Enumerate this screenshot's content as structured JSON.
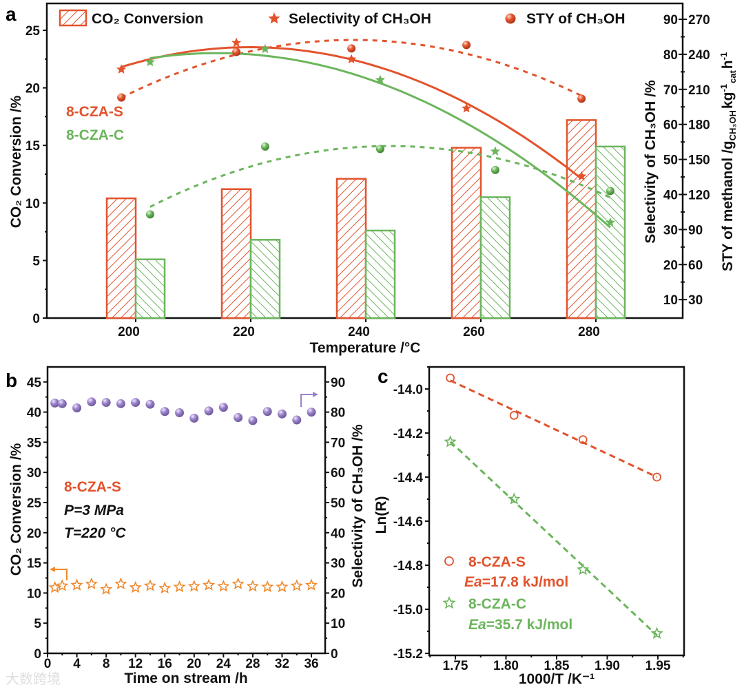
{
  "figure": {
    "watermark": "大数跨境",
    "panel_labels": [
      "a",
      "b",
      "c"
    ]
  },
  "colors": {
    "red": "#e2532c",
    "green": "#6bb55c",
    "purple": "#9a82c9",
    "orange": "#f0892c",
    "axis": "#111111"
  },
  "chart_data": [
    {
      "panel": "a",
      "type": "bar+line",
      "legend": [
        "CO₂ Conversion",
        "Selectivity of CH₃OH",
        "STY of CH₃OH"
      ],
      "legend_placement": "top",
      "xlabel": "Temperature /°C",
      "ylabel": "CO₂ Conversion /%",
      "y2label": "Selectivity of CH₃OH /%",
      "y3label": {
        "main": "STY of methanol /g",
        "sub1": "CH₃OH",
        "kg": "kg",
        "sup1": "-1",
        "sub2": "cat",
        "h": "h",
        "sup2": "-1"
      },
      "samples": [
        "8-CZA-S",
        "8-CZA-C"
      ],
      "categories": [
        200,
        220,
        240,
        260,
        280
      ],
      "x_ticks": [
        "200",
        "220",
        "240",
        "260",
        "280"
      ],
      "y_ticks": [
        "0",
        "5",
        "10",
        "15",
        "20",
        "25"
      ],
      "y2_ticks": [
        "10",
        "20",
        "30",
        "40",
        "50",
        "60",
        "70",
        "80",
        "90"
      ],
      "y3_ticks": [
        "30",
        "60",
        "90",
        "120",
        "150",
        "180",
        "210",
        "240",
        "270"
      ],
      "xlim": [
        184.5,
        295.1
      ],
      "ylim": [
        0,
        27.3
      ],
      "y2lim": [
        4.7,
        94.5
      ],
      "y3lim": [
        14.1,
        283.5
      ],
      "bars": [
        {
          "name": "8-CZA-S",
          "values": [
            10.4,
            11.2,
            12.1,
            14.8,
            17.2
          ]
        },
        {
          "name": "8-CZA-C",
          "values": [
            5.1,
            6.8,
            7.6,
            10.5,
            14.9
          ]
        }
      ],
      "selectivity": [
        {
          "name": "8-CZA-S",
          "x": [
            197.5,
            217.5,
            237.5,
            257.5,
            277.5
          ],
          "values": [
            75.7,
            83.3,
            78.6,
            64.6,
            45.2
          ]
        },
        {
          "name": "8-CZA-C",
          "x": [
            202.5,
            222.5,
            242.5,
            262.5,
            282.5
          ],
          "values": [
            77.8,
            81.5,
            72.7,
            52.3,
            32.0
          ]
        }
      ],
      "sty": [
        {
          "name": "8-CZA-S",
          "x": [
            197.5,
            217.5,
            237.5,
            257.5,
            277.5
          ],
          "values": [
            203,
            242,
            245,
            248,
            202
          ]
        },
        {
          "name": "8-CZA-C",
          "x": [
            202.5,
            222.5,
            242.5,
            262.5,
            282.5
          ],
          "values": [
            103,
            161,
            159,
            141,
            123
          ]
        }
      ]
    },
    {
      "panel": "b",
      "type": "scatter",
      "xlabel": "Time on stream /h",
      "ylabel": "CO₂ Conversion /%",
      "y2label": "Selectivity of CH₃OH /%",
      "annotations": [
        "8-CZA-S",
        "P=3 MPa",
        "T=220 °C"
      ],
      "x_ticks": [
        "0",
        "4",
        "8",
        "12",
        "16",
        "20",
        "24",
        "28",
        "32",
        "36"
      ],
      "y_ticks": [
        "0",
        "5",
        "10",
        "15",
        "20",
        "25",
        "30",
        "35",
        "40",
        "45"
      ],
      "y2_ticks": [
        "0",
        "10",
        "20",
        "30",
        "40",
        "50",
        "60",
        "70",
        "80",
        "90"
      ],
      "xlim": [
        0,
        37.9
      ],
      "ylim": [
        0,
        47.5
      ],
      "y2lim": [
        0,
        95
      ],
      "x": [
        1,
        2,
        4,
        6,
        8,
        10,
        12,
        14,
        16,
        18,
        20,
        22,
        24,
        26,
        28,
        30,
        32,
        34,
        36
      ],
      "series": [
        {
          "name": "CO₂ Conversion",
          "axis": "left",
          "values": [
            10.9,
            11.2,
            11.3,
            11.5,
            10.6,
            11.5,
            10.9,
            11.2,
            10.8,
            11.0,
            11.1,
            11.3,
            11.1,
            11.5,
            11.1,
            11.0,
            11.0,
            11.2,
            11.3
          ]
        },
        {
          "name": "Selectivity of CH₃OH",
          "axis": "right",
          "values": [
            83.0,
            82.8,
            81.4,
            83.4,
            83.2,
            82.8,
            83.2,
            82.6,
            80.2,
            79.8,
            78.0,
            80.4,
            81.6,
            78.2,
            77.2,
            80.2,
            79.4,
            77.4,
            80.0
          ]
        }
      ]
    },
    {
      "panel": "c",
      "type": "scatter",
      "xlabel": "1000/T /K⁻¹",
      "ylabel": "Ln(R)",
      "x_ticks": [
        "1.75",
        "1.80",
        "1.85",
        "1.90",
        "1.95"
      ],
      "y_ticks": [
        "-14.0",
        "-14.2",
        "-14.4",
        "-14.6",
        "-14.8",
        "-15.0",
        "-15.2"
      ],
      "xlim": [
        1.71,
        1.976
      ],
      "ylim": [
        -15.26,
        -13.9
      ],
      "series": [
        {
          "name": "8-CZA-S",
          "ea_label": "Ea",
          "ea_value": "=17.8 kJ/mol",
          "x": [
            1.745,
            1.808,
            1.876,
            1.949
          ],
          "values": [
            -13.95,
            -14.12,
            -14.23,
            -14.4
          ]
        },
        {
          "name": "8-CZA-C",
          "ea_label": "Ea",
          "ea_value": "=35.7 kJ/mol",
          "x": [
            1.745,
            1.808,
            1.876,
            1.949
          ],
          "values": [
            -14.24,
            -14.5,
            -14.82,
            -15.11
          ]
        }
      ]
    }
  ]
}
